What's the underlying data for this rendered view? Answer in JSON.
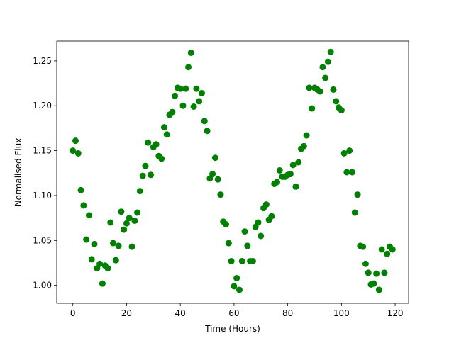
{
  "chart_data": {
    "type": "scatter",
    "x_label": "Time (Hours)",
    "y_label": "Normalised Flux",
    "color": "#008000",
    "x": [
      0,
      1,
      2,
      3,
      4,
      5,
      6,
      7,
      8,
      9,
      10,
      11,
      12,
      13,
      14,
      15,
      16,
      17,
      18,
      19,
      20,
      21,
      22,
      23,
      24,
      25,
      26,
      27,
      28,
      29,
      30,
      31,
      32,
      33,
      34,
      35,
      36,
      37,
      38,
      39,
      40,
      41,
      42,
      43,
      44,
      45,
      46,
      47,
      48,
      49,
      50,
      51,
      52,
      53,
      54,
      55,
      56,
      57,
      58,
      59,
      60,
      61,
      62,
      63,
      64,
      65,
      66,
      67,
      68,
      69,
      70,
      71,
      72,
      73,
      74,
      75,
      76,
      77,
      78,
      79,
      80,
      81,
      82,
      83,
      84,
      85,
      86,
      87,
      88,
      89,
      90,
      91,
      92,
      93,
      94,
      95,
      96,
      97,
      98,
      99,
      100,
      101,
      102,
      103,
      104,
      105,
      106,
      107,
      108,
      109,
      110,
      111,
      112,
      113,
      114,
      115,
      116,
      117,
      118,
      119
    ],
    "values": [
      1.15,
      1.161,
      1.147,
      1.106,
      1.089,
      1.051,
      1.078,
      1.029,
      1.046,
      1.019,
      1.024,
      1.002,
      1.022,
      1.019,
      1.07,
      1.047,
      1.028,
      1.044,
      1.082,
      1.062,
      1.069,
      1.075,
      1.043,
      1.072,
      1.081,
      1.105,
      1.122,
      1.133,
      1.159,
      1.123,
      1.154,
      1.157,
      1.144,
      1.141,
      1.176,
      1.168,
      1.19,
      1.193,
      1.211,
      1.22,
      1.219,
      1.2,
      1.219,
      1.243,
      1.259,
      1.199,
      1.219,
      1.205,
      1.214,
      1.183,
      1.172,
      1.119,
      1.124,
      1.142,
      1.118,
      1.101,
      1.071,
      1.068,
      1.047,
      1.027,
      0.999,
      1.008,
      0.995,
      1.027,
      1.06,
      1.044,
      1.027,
      1.027,
      1.065,
      1.07,
      1.055,
      1.086,
      1.09,
      1.073,
      1.077,
      1.113,
      1.115,
      1.128,
      1.121,
      1.121,
      1.123,
      1.124,
      1.134,
      1.11,
      1.137,
      1.152,
      1.155,
      1.167,
      1.22,
      1.197,
      1.22,
      1.218,
      1.216,
      1.243,
      1.231,
      1.249,
      1.26,
      1.218,
      1.205,
      1.198,
      1.195,
      1.147,
      1.126,
      1.15,
      1.126,
      1.081,
      1.101,
      1.044,
      1.043,
      1.024,
      1.014,
      1.001,
      1.002,
      1.013,
      0.995,
      1.04,
      1.014,
      1.035,
      1.043,
      1.04
    ],
    "xlim": [
      -6,
      125
    ],
    "xticks": [
      0,
      20,
      40,
      60,
      80,
      100,
      120
    ],
    "ylim": [
      0.98,
      1.272
    ],
    "yticks": [
      {
        "value": 1,
        "label": "1.00"
      },
      1.05,
      {
        "value": 1.1,
        "label": "1.10"
      },
      1.15,
      {
        "value": 1.2,
        "label": "1.20"
      },
      1.25
    ],
    "grid": false
  }
}
